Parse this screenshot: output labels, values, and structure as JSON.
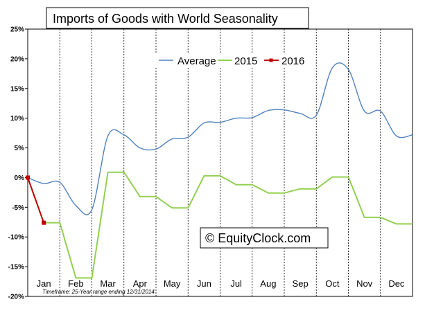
{
  "chart_data": {
    "type": "line",
    "title": "Imports of Goods with World Seasonality",
    "watermark": "© EquityClock.com",
    "footnote": "Timeframe: 25-Year range ending 12/31/2014",
    "xlabel": "",
    "ylabel": "",
    "categories": [
      "Jan",
      "Feb",
      "Mar",
      "Apr",
      "May",
      "Jun",
      "Jul",
      "Aug",
      "Sep",
      "Oct",
      "Nov",
      "Dec"
    ],
    "ylim": [
      -20,
      25
    ],
    "yticks": [
      -20,
      -15,
      -10,
      -5,
      0,
      5,
      10,
      15,
      20,
      25
    ],
    "ytick_labels": [
      "-20%",
      "-15%",
      "-10%",
      "-5%",
      "0%",
      "5%",
      "10%",
      "15%",
      "20%",
      "25%"
    ],
    "grid": "vertical dashed separators between months",
    "legend_position": "top-center",
    "series": [
      {
        "name": "Average",
        "color": "#4f81bd",
        "smooth": true,
        "x": [
          0,
          0.5,
          1,
          1.5,
          2,
          2.5,
          3,
          3.5,
          4,
          4.5,
          5,
          5.5,
          6,
          6.5,
          7,
          7.5,
          8,
          8.5,
          9,
          9.5,
          10,
          10.5,
          11,
          11.5,
          12
        ],
        "values": [
          0,
          -1.0,
          -0.8,
          -4.7,
          -5.4,
          7.0,
          7.2,
          5.0,
          4.8,
          6.5,
          6.8,
          9.2,
          9.3,
          10.0,
          10.1,
          11.3,
          11.4,
          10.8,
          10.5,
          18.5,
          18.2,
          11.2,
          11.2,
          7.0,
          7.2
        ]
      },
      {
        "name": "2015",
        "color": "#92d050",
        "smooth": false,
        "x": [
          0,
          0.5,
          1,
          1.5,
          2,
          2.5,
          3,
          3.5,
          4,
          4.5,
          5,
          5.5,
          6,
          6.5,
          7,
          7.5,
          8,
          8.5,
          9,
          9.5,
          10,
          10.5,
          11,
          11.5,
          12
        ],
        "values": [
          0,
          -7.6,
          -7.6,
          -16.9,
          -16.9,
          0.9,
          0.9,
          -3.2,
          -3.2,
          -5.1,
          -5.1,
          0.3,
          0.3,
          -1.2,
          -1.2,
          -2.6,
          -2.6,
          -1.9,
          -1.9,
          0.1,
          0.1,
          -6.7,
          -6.7,
          -7.8,
          -7.8
        ]
      },
      {
        "name": "2016",
        "color": "#c00000",
        "smooth": false,
        "marker": "square",
        "x": [
          0,
          0.5
        ],
        "values": [
          0,
          -7.6
        ]
      }
    ]
  }
}
